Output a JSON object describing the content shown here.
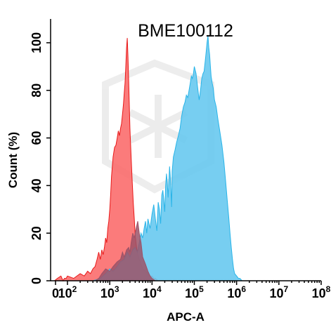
{
  "chart_data": {
    "type": "area",
    "title": "BME100112",
    "xlabel": "APC-A",
    "ylabel": "Count  (%)",
    "x_scale": "biexponential",
    "xlim": [
      -30,
      100000000
    ],
    "ylim": [
      0,
      110
    ],
    "x_ticks": [
      {
        "value": 0,
        "base": "0",
        "exp": ""
      },
      {
        "value": 100,
        "base": "10",
        "exp": "2"
      },
      {
        "value": 1000,
        "base": "10",
        "exp": "3"
      },
      {
        "value": 10000,
        "base": "10",
        "exp": "4"
      },
      {
        "value": 100000,
        "base": "10",
        "exp": "5"
      },
      {
        "value": 1000000,
        "base": "10",
        "exp": "6"
      },
      {
        "value": 10000000,
        "base": "10",
        "exp": "7"
      },
      {
        "value": 100000000,
        "base": "10",
        "exp": "8"
      }
    ],
    "y_ticks": [
      "0",
      "20",
      "40",
      "60",
      "80",
      "100"
    ],
    "y_tick_values": [
      0,
      20,
      40,
      60,
      80,
      100
    ],
    "grid": false,
    "legend": "none",
    "series": [
      {
        "color": "#fb6d6d",
        "stroke": "#e81919",
        "x": [
          -5,
          2,
          8,
          18,
          30,
          60,
          100,
          140,
          200,
          250,
          300,
          350,
          400,
          450,
          500,
          550,
          600,
          650,
          700,
          750,
          800,
          850,
          900,
          950,
          1000,
          1050,
          1100,
          1200,
          1300,
          1400,
          1500,
          1600,
          1700,
          1800,
          1900,
          2000,
          2100,
          2200,
          2300,
          2400,
          2500,
          2600,
          2700,
          2800,
          2900,
          3000,
          3200,
          3400,
          3600,
          3800,
          4000,
          4300,
          4600,
          5000,
          5500,
          6000,
          7000,
          8000,
          9000,
          10000,
          11000,
          12000,
          14000,
          17000
        ],
        "y": [
          0,
          1,
          2,
          0,
          1,
          1,
          2,
          1,
          3,
          2,
          4,
          3,
          5,
          6,
          9,
          12,
          9,
          13,
          11,
          14,
          18,
          16,
          22,
          25,
          30,
          36,
          44,
          52,
          56,
          57,
          60,
          63,
          61,
          64,
          66,
          70,
          74,
          79,
          83,
          90,
          98,
          102,
          94,
          84,
          74,
          64,
          52,
          42,
          33,
          26,
          19,
          14,
          11,
          9,
          7,
          5,
          4,
          3,
          2,
          2,
          1,
          1,
          0,
          0
        ]
      },
      {
        "color": "#68c9f0",
        "stroke": "#29b4e8",
        "x": [
          400,
          600,
          800,
          1000,
          1200,
          1500,
          1800,
          2200,
          2600,
          3000,
          3500,
          4000,
          4500,
          5000,
          5500,
          6000,
          6500,
          7000,
          7500,
          8000,
          9000,
          10000,
          11000,
          12000,
          13000,
          14000,
          15000,
          16000,
          17000,
          18000,
          19000,
          20000,
          21000,
          22000,
          23000,
          24000,
          25000,
          26000,
          27000,
          28000,
          29000,
          30000,
          32000,
          35000,
          38000,
          42000,
          46000,
          50000,
          55000,
          60000,
          65000,
          70000,
          75000,
          80000,
          85000,
          90000,
          95000,
          100000,
          110000,
          120000,
          130000,
          140000,
          150000,
          160000,
          170000,
          180000,
          190000,
          200000,
          210000,
          220000,
          230000,
          240000,
          250000,
          265000,
          280000,
          300000,
          330000,
          360000,
          400000,
          450000,
          500000,
          550000,
          600000,
          650000,
          700000,
          750000,
          800000,
          850000,
          900000,
          1000000,
          1100000,
          1200000,
          1350000,
          1500000,
          1700000,
          2000000
        ],
        "y": [
          0,
          1,
          3,
          5,
          4,
          6,
          8,
          9,
          12,
          10,
          13,
          14,
          12,
          16,
          20,
          18,
          22,
          25,
          20,
          26,
          22,
          28,
          32,
          26,
          21,
          33,
          30,
          24,
          36,
          38,
          34,
          29,
          40,
          45,
          41,
          35,
          42,
          48,
          44,
          38,
          31,
          46,
          52,
          55,
          58,
          61,
          64,
          69,
          73,
          75,
          78,
          77,
          80,
          83,
          86,
          85,
          87,
          90,
          87,
          81,
          76,
          80,
          85,
          87,
          88,
          92,
          96,
          100,
          103,
          98,
          95,
          90,
          86,
          83,
          81,
          76,
          73,
          68,
          63,
          57,
          50,
          42,
          34,
          27,
          20,
          14,
          9,
          5,
          3,
          2,
          1,
          1,
          0,
          0,
          0,
          0
        ]
      },
      {
        "color": "#9b5368",
        "stroke": "#9b5368",
        "x": [
          450,
          550,
          650,
          800,
          1000,
          1200,
          1500,
          1800,
          2000,
          2200,
          2500,
          2800,
          3000,
          3200,
          3500,
          3800,
          4200,
          4600,
          5000,
          5500,
          6000,
          7000,
          8000,
          9000,
          10000,
          12000
        ],
        "y": [
          0,
          1,
          3,
          5,
          4,
          6,
          8,
          9,
          12,
          10,
          13,
          14,
          12,
          16,
          20,
          18,
          22,
          25,
          20,
          16,
          10,
          7,
          4,
          2,
          1,
          0
        ]
      }
    ]
  }
}
